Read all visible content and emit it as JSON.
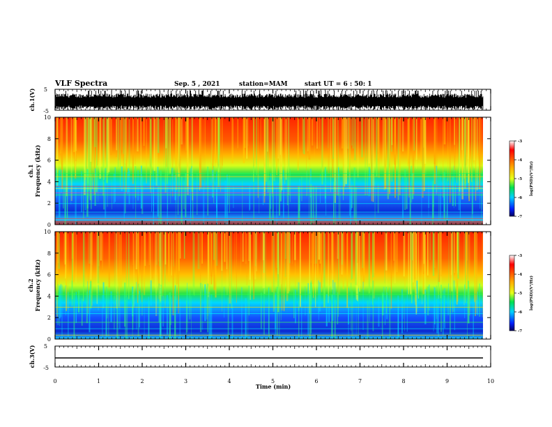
{
  "header": {
    "title": "VLF Spectra",
    "date": "Sep. 5 , 2021",
    "station": "station=MAM",
    "start": "start UT = 6 : 50: 1"
  },
  "chart_data": [
    {
      "type": "line",
      "panel": "ch1-waveform",
      "ylabel": "ch.1(V)",
      "ylim": [
        -5,
        5
      ],
      "yticks": [
        "5",
        "-5"
      ],
      "description_values": "dense black waveform spanning roughly -5 to 5 V"
    },
    {
      "type": "heatmap",
      "panel": "ch1-spectrogram",
      "ylabel": "ch.1\nFrequency (kHz)",
      "ylim": [
        0,
        10
      ],
      "yticks": [
        "0",
        "2",
        "4",
        "6",
        "8",
        "10"
      ],
      "colorbar": {
        "label": "log(PSD)(V²/Hz)",
        "ticks": [
          "-3",
          "-4",
          "-5",
          "-6",
          "-7"
        ],
        "range": [
          -7,
          -3
        ]
      }
    },
    {
      "type": "heatmap",
      "panel": "ch2-spectrogram",
      "ylabel": "ch.2\nFrequency (kHz)",
      "ylim": [
        0,
        10
      ],
      "yticks": [
        "0",
        "2",
        "4",
        "6",
        "8",
        "10"
      ],
      "colorbar": {
        "label": "log(PSD)(V²/Hz)",
        "ticks": [
          "-3",
          "-4",
          "-5",
          "-6",
          "-7"
        ],
        "range": [
          -7,
          -3
        ]
      }
    },
    {
      "type": "line",
      "panel": "ch3-waveform",
      "ylabel": "ch.3(V)",
      "ylim": [
        -5,
        5
      ],
      "yticks": [
        "5",
        "-5"
      ],
      "description_values": "flat line near -1 V"
    }
  ],
  "xaxis": {
    "label": "Time (min)",
    "xlim": [
      0,
      10
    ],
    "ticks": [
      "0",
      "1",
      "2",
      "3",
      "4",
      "5",
      "6",
      "7",
      "8",
      "9",
      "10"
    ]
  },
  "colors": {
    "red": "#ff2a00",
    "orange": "#ffaa00",
    "yellow": "#e6ff1a",
    "green": "#22e04a",
    "cyan": "#00d2ff",
    "blue": "#1040ff",
    "navy": "#000090"
  }
}
